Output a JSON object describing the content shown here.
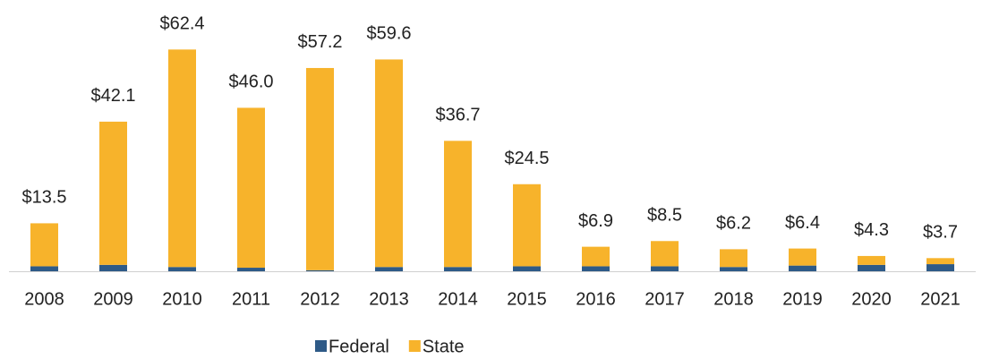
{
  "chart_data": {
    "type": "bar",
    "stacked": true,
    "categories": [
      "2008",
      "2009",
      "2010",
      "2011",
      "2012",
      "2013",
      "2014",
      "2015",
      "2016",
      "2017",
      "2018",
      "2019",
      "2020",
      "2021"
    ],
    "series": [
      {
        "name": "Federal",
        "color": "#2e5a87",
        "values": [
          1.4,
          1.8,
          1.2,
          1.0,
          0.3,
          1.2,
          1.2,
          1.4,
          1.4,
          1.4,
          1.2,
          1.6,
          1.8,
          2.0
        ]
      },
      {
        "name": "State",
        "color": "#f7b32b",
        "values": [
          12.1,
          40.3,
          61.2,
          45.0,
          56.9,
          58.4,
          35.5,
          23.1,
          5.5,
          7.1,
          5.0,
          4.8,
          2.5,
          1.7
        ]
      }
    ],
    "totals": [
      13.5,
      42.1,
      62.4,
      46.0,
      57.2,
      59.6,
      36.7,
      24.5,
      6.9,
      8.5,
      6.2,
      6.4,
      4.3,
      3.7
    ],
    "total_labels": [
      "$13.5",
      "$42.1",
      "$62.4",
      "$46.0",
      "$57.2",
      "$59.6",
      "$36.7",
      "$24.5",
      "$6.9",
      "$8.5",
      "$6.2",
      "$6.4",
      "$4.3",
      "$3.7"
    ],
    "ylim": [
      0,
      65
    ],
    "legend": "bottom"
  }
}
